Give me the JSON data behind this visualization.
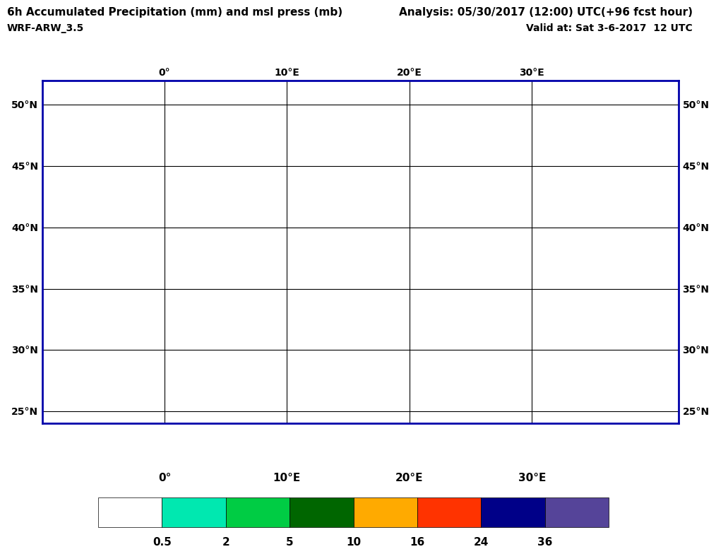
{
  "title_left": "6h Accumulated Precipitation (mm) and msl press (mb)",
  "title_right": "Analysis: 05/30/2017 (12:00) UTC(+96 fcst hour)",
  "subtitle_left": "WRF-ARW_3.5",
  "subtitle_right": "Valid at: Sat 3-6-2017  12 UTC",
  "lon_min": -10,
  "lon_max": 42,
  "lat_min": 24,
  "lat_max": 52,
  "lon_ticks": [
    0,
    10,
    20,
    30
  ],
  "lat_ticks": [
    25,
    30,
    35,
    40,
    45,
    50
  ],
  "colorbar_colors": [
    "#ffffff",
    "#00e8b0",
    "#00cc44",
    "#006600",
    "#ffaa00",
    "#ff3300",
    "#000088",
    "#554499"
  ],
  "colorbar_labels": [
    "0.5",
    "2",
    "5",
    "10",
    "16",
    "24",
    "36"
  ],
  "colorbar_levels": [
    0,
    0.5,
    2,
    5,
    10,
    16,
    24,
    36,
    200
  ],
  "contour_color": "#3355cc",
  "background_color": "#ffffff",
  "title_fontsize": 11,
  "subtitle_fontsize": 10,
  "axis_label_fontsize": 10,
  "colorbar_label_fontsize": 11
}
